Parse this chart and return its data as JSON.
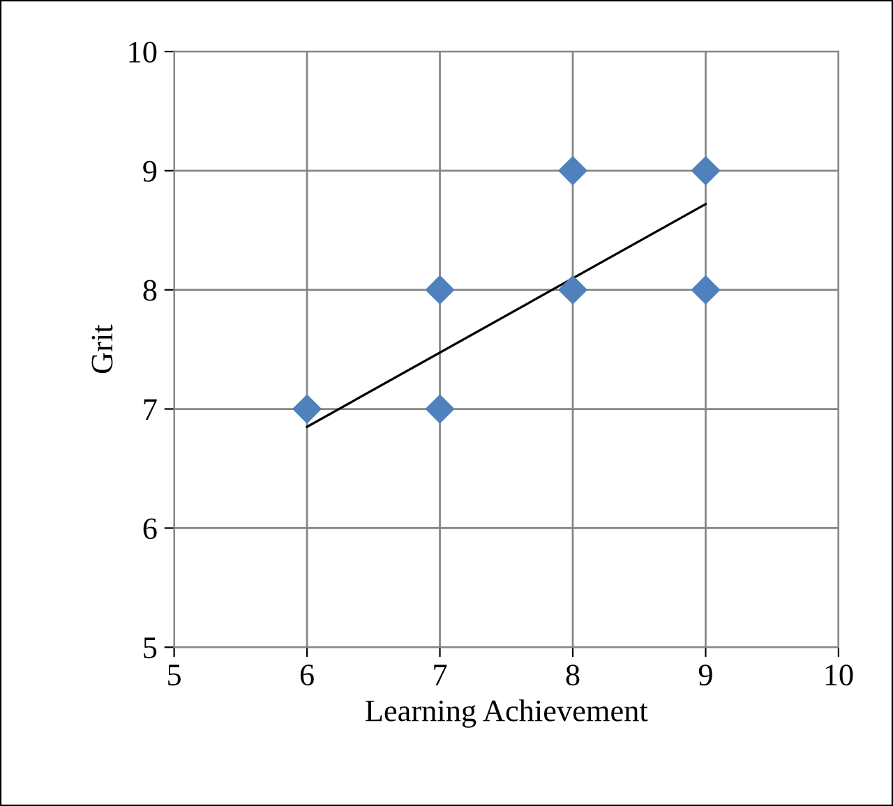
{
  "chart_data": {
    "type": "scatter",
    "xlabel": "Learning Achievement",
    "ylabel": "Grit",
    "marker": "diamond",
    "grid": true,
    "xlim": [
      5,
      10
    ],
    "ylim": [
      5,
      10
    ],
    "xticks": [
      5,
      6,
      7,
      8,
      9,
      10
    ],
    "yticks": [
      5,
      6,
      7,
      8,
      9,
      10
    ],
    "series": [
      {
        "color": "#4f81bd",
        "x": [
          6,
          7,
          7,
          8,
          8,
          9,
          9
        ],
        "values": [
          7,
          8,
          7,
          9,
          8,
          9,
          8
        ]
      },
      {
        "type": "line",
        "color": "#000000",
        "marker": "none",
        "x": [
          6,
          9
        ],
        "values": [
          6.85,
          8.72
        ]
      }
    ]
  }
}
